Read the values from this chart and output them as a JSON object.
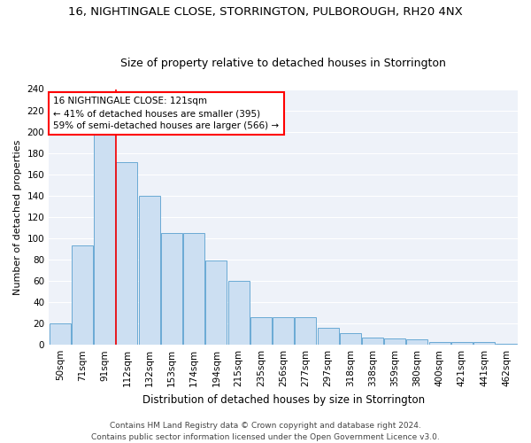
{
  "title": "16, NIGHTINGALE CLOSE, STORRINGTON, PULBOROUGH, RH20 4NX",
  "subtitle": "Size of property relative to detached houses in Storrington",
  "xlabel": "Distribution of detached houses by size in Storrington",
  "ylabel": "Number of detached properties",
  "categories": [
    "50sqm",
    "71sqm",
    "91sqm",
    "112sqm",
    "132sqm",
    "153sqm",
    "174sqm",
    "194sqm",
    "215sqm",
    "235sqm",
    "256sqm",
    "277sqm",
    "297sqm",
    "318sqm",
    "338sqm",
    "359sqm",
    "380sqm",
    "400sqm",
    "421sqm",
    "441sqm",
    "462sqm"
  ],
  "values": [
    20,
    93,
    197,
    171,
    140,
    105,
    105,
    79,
    60,
    26,
    26,
    26,
    16,
    11,
    7,
    6,
    5,
    3,
    3,
    3,
    1
  ],
  "bar_color": "#ccdff2",
  "bar_edge_color": "#6aaad4",
  "vline_index": 2,
  "vline_color": "red",
  "annotation_text": "16 NIGHTINGALE CLOSE: 121sqm\n← 41% of detached houses are smaller (395)\n59% of semi-detached houses are larger (566) →",
  "annotation_box_color": "white",
  "annotation_box_edge_color": "red",
  "ylim": [
    0,
    240
  ],
  "yticks": [
    0,
    20,
    40,
    60,
    80,
    100,
    120,
    140,
    160,
    180,
    200,
    220,
    240
  ],
  "background_color": "#eef2f9",
  "grid_color": "#ffffff",
  "footer_line1": "Contains HM Land Registry data © Crown copyright and database right 2024.",
  "footer_line2": "Contains public sector information licensed under the Open Government Licence v3.0.",
  "title_fontsize": 9.5,
  "subtitle_fontsize": 9,
  "xlabel_fontsize": 8.5,
  "ylabel_fontsize": 8,
  "tick_fontsize": 7.5,
  "annotation_fontsize": 7.5,
  "footer_fontsize": 6.5
}
